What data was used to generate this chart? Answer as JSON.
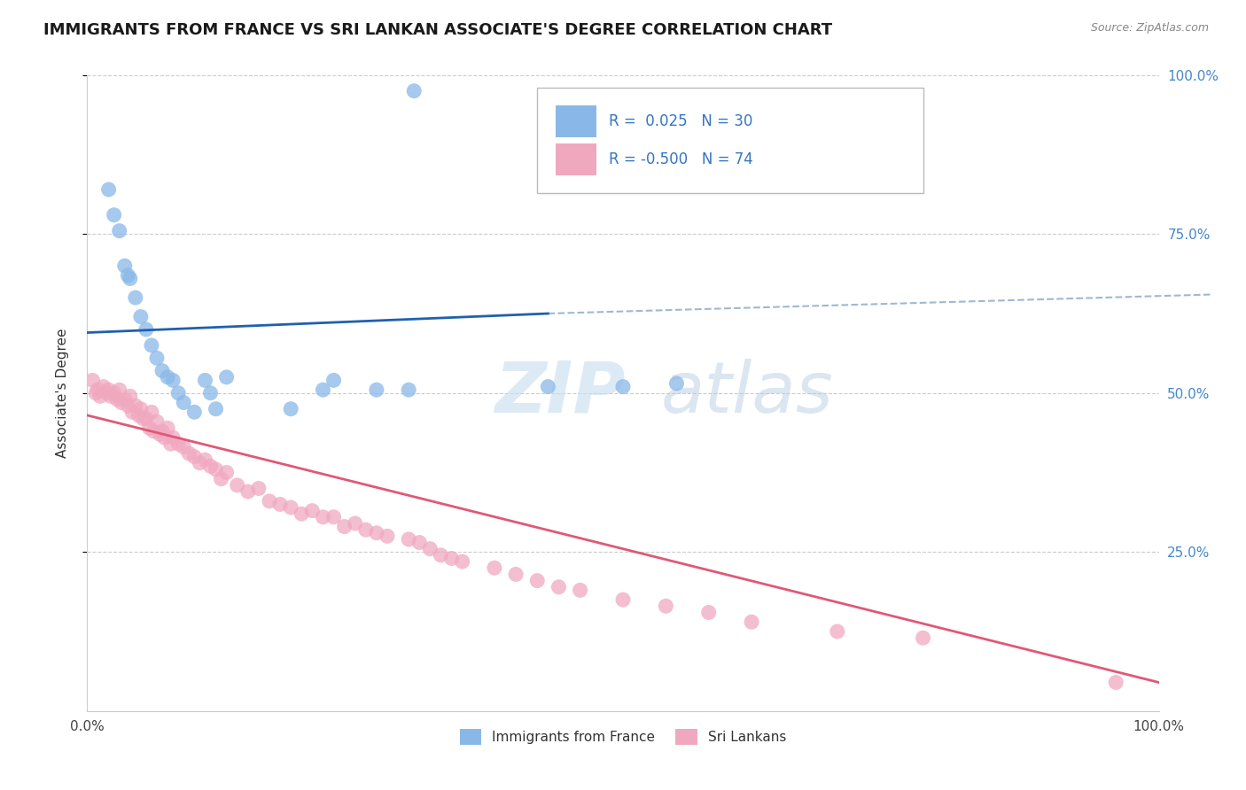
{
  "title": "IMMIGRANTS FROM FRANCE VS SRI LANKAN ASSOCIATE'S DEGREE CORRELATION CHART",
  "source": "Source: ZipAtlas.com",
  "ylabel": "Associate's Degree",
  "xlim": [
    0.0,
    1.0
  ],
  "ylim": [
    0.0,
    1.0
  ],
  "ytick_positions": [
    0.25,
    0.5,
    0.75,
    1.0
  ],
  "right_ytick_labels": [
    "25.0%",
    "50.0%",
    "75.0%",
    "100.0%"
  ],
  "background_color": "#ffffff",
  "grid_color": "#cccccc",
  "blue_color": "#89b8e8",
  "pink_color": "#f0a8bf",
  "blue_line_color": "#2060b0",
  "pink_line_color": "#e05878",
  "legend_R_blue": " 0.025",
  "legend_N_blue": "30",
  "legend_R_pink": "-0.500",
  "legend_N_pink": "74",
  "legend_label_blue": "Immigrants from France",
  "legend_label_pink": "Sri Lankans",
  "blue_scatter_x": [
    0.305,
    0.02,
    0.025,
    0.03,
    0.035,
    0.038,
    0.04,
    0.045,
    0.05,
    0.055,
    0.06,
    0.065,
    0.07,
    0.075,
    0.08,
    0.085,
    0.09,
    0.1,
    0.11,
    0.115,
    0.12,
    0.13,
    0.19,
    0.22,
    0.23,
    0.27,
    0.3,
    0.43,
    0.5,
    0.55
  ],
  "blue_scatter_y": [
    0.975,
    0.82,
    0.78,
    0.755,
    0.7,
    0.685,
    0.68,
    0.65,
    0.62,
    0.6,
    0.575,
    0.555,
    0.535,
    0.525,
    0.52,
    0.5,
    0.485,
    0.47,
    0.52,
    0.5,
    0.475,
    0.525,
    0.475,
    0.505,
    0.52,
    0.505,
    0.505,
    0.51,
    0.51,
    0.515
  ],
  "pink_scatter_x": [
    0.005,
    0.008,
    0.01,
    0.012,
    0.015,
    0.018,
    0.02,
    0.022,
    0.025,
    0.028,
    0.03,
    0.032,
    0.035,
    0.038,
    0.04,
    0.042,
    0.045,
    0.048,
    0.05,
    0.052,
    0.055,
    0.058,
    0.06,
    0.062,
    0.065,
    0.068,
    0.07,
    0.072,
    0.075,
    0.078,
    0.08,
    0.085,
    0.09,
    0.095,
    0.1,
    0.105,
    0.11,
    0.115,
    0.12,
    0.125,
    0.13,
    0.14,
    0.15,
    0.16,
    0.17,
    0.18,
    0.19,
    0.2,
    0.21,
    0.22,
    0.23,
    0.24,
    0.25,
    0.26,
    0.27,
    0.28,
    0.3,
    0.31,
    0.32,
    0.33,
    0.34,
    0.35,
    0.38,
    0.4,
    0.42,
    0.44,
    0.46,
    0.5,
    0.54,
    0.58,
    0.62,
    0.7,
    0.78,
    0.96
  ],
  "pink_scatter_y": [
    0.52,
    0.5,
    0.505,
    0.495,
    0.51,
    0.5,
    0.505,
    0.495,
    0.5,
    0.49,
    0.505,
    0.485,
    0.49,
    0.48,
    0.495,
    0.47,
    0.48,
    0.465,
    0.475,
    0.46,
    0.46,
    0.445,
    0.47,
    0.44,
    0.455,
    0.435,
    0.44,
    0.43,
    0.445,
    0.42,
    0.43,
    0.42,
    0.415,
    0.405,
    0.4,
    0.39,
    0.395,
    0.385,
    0.38,
    0.365,
    0.375,
    0.355,
    0.345,
    0.35,
    0.33,
    0.325,
    0.32,
    0.31,
    0.315,
    0.305,
    0.305,
    0.29,
    0.295,
    0.285,
    0.28,
    0.275,
    0.27,
    0.265,
    0.255,
    0.245,
    0.24,
    0.235,
    0.225,
    0.215,
    0.205,
    0.195,
    0.19,
    0.175,
    0.165,
    0.155,
    0.14,
    0.125,
    0.115,
    0.045
  ]
}
